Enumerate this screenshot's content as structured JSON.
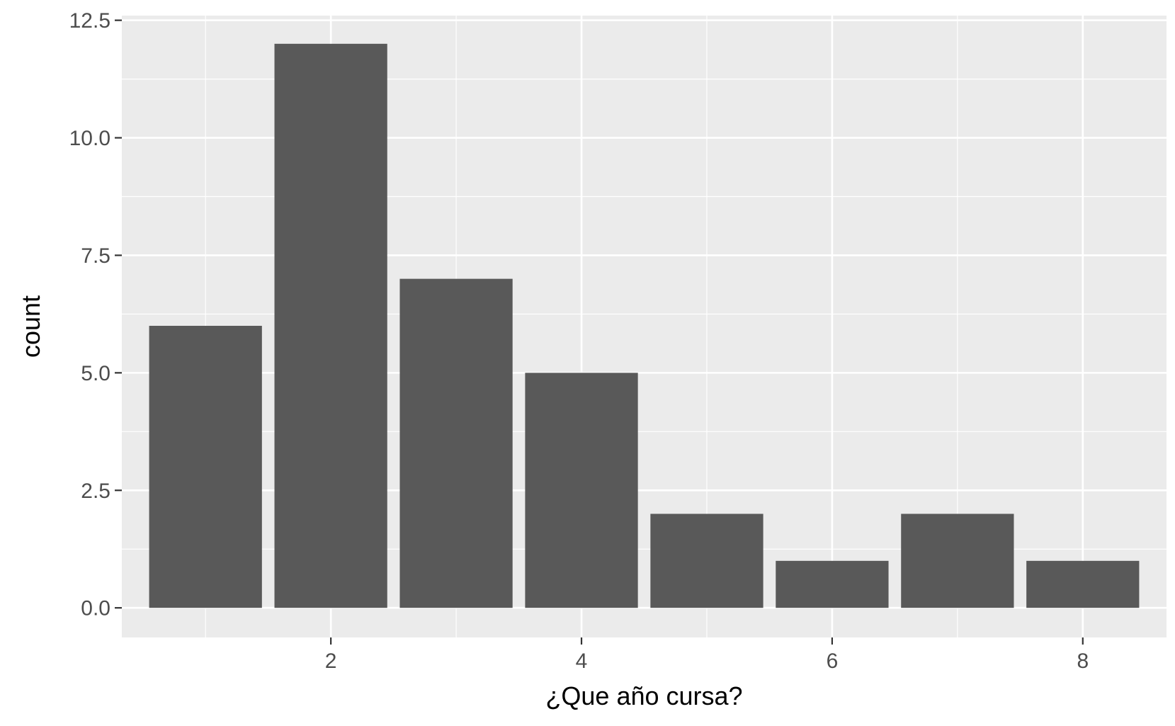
{
  "chart_data": {
    "type": "bar",
    "x": [
      1,
      2,
      3,
      4,
      5,
      6,
      7,
      8
    ],
    "values": [
      6,
      12,
      7,
      5,
      2,
      1,
      2,
      1
    ],
    "xlabel": "¿Que año cursa?",
    "ylabel": "count",
    "xlim": [
      0.5,
      8.5
    ],
    "ylim": [
      0,
      12.6
    ],
    "xticks": [
      2,
      4,
      6,
      8
    ],
    "xtick_labels": [
      "2",
      "4",
      "6",
      "8"
    ],
    "yticks": [
      0,
      2.5,
      5,
      7.5,
      10,
      12.5
    ],
    "ytick_labels": [
      "0.0",
      "2.5",
      "5.0",
      "7.5",
      "10.0",
      "12.5"
    ],
    "grid": true,
    "legend": "none",
    "colors": {
      "bar": "#595959",
      "panel": "#ebebeb",
      "grid_major": "#ffffff",
      "grid_minor": "#ffffff",
      "tick_text": "#4d4d4d",
      "tick_mark": "#333333"
    }
  }
}
